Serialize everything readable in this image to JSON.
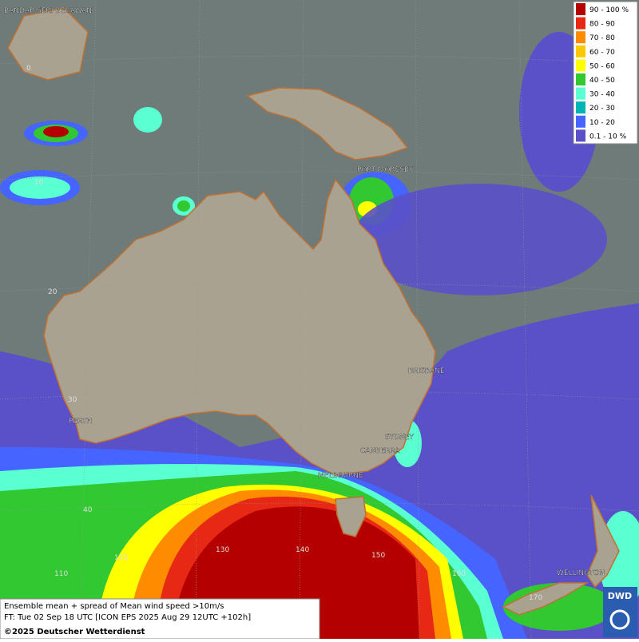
{
  "map": {
    "place_labels": [
      "BANDAR SERI BEGAWAN",
      "PORT MORESBY",
      "BRISBANE",
      "SYDNEY",
      "CANBERRA",
      "MELBOURNE",
      "PERTH",
      "WELLINGTON"
    ],
    "latitude_labels": [
      "0",
      "10",
      "20",
      "30",
      "40"
    ],
    "longitude_labels": [
      "110",
      "120",
      "130",
      "140",
      "150",
      "160",
      "170"
    ]
  },
  "legend": {
    "entries": [
      {
        "label": "90 - 100 %",
        "color": "#b40000"
      },
      {
        "label": "80 - 90",
        "color": "#e62814"
      },
      {
        "label": "70 - 80",
        "color": "#ff8c00"
      },
      {
        "label": "60 - 70",
        "color": "#ffc800"
      },
      {
        "label": "50 - 60",
        "color": "#ffff00"
      },
      {
        "label": "40 - 50",
        "color": "#32c832"
      },
      {
        "label": "30 - 40",
        "color": "#5affd2"
      },
      {
        "label": "20 - 30",
        "color": "#00b4b4"
      },
      {
        "label": "10 - 20",
        "color": "#4664ff"
      },
      {
        "label": "0.1 - 10 %",
        "color": "#5a50c8"
      }
    ]
  },
  "caption": {
    "lines": [
      "Ensemble mean + spread of Mean wind speed >10m/s",
      "FT: Tue 02 Sep 18 UTC [ICON EPS 2025 Aug 29 12UTC +102h]"
    ],
    "copyright": "©2025 Deutscher Wetterdienst"
  },
  "logo": {
    "text": "DWD"
  }
}
